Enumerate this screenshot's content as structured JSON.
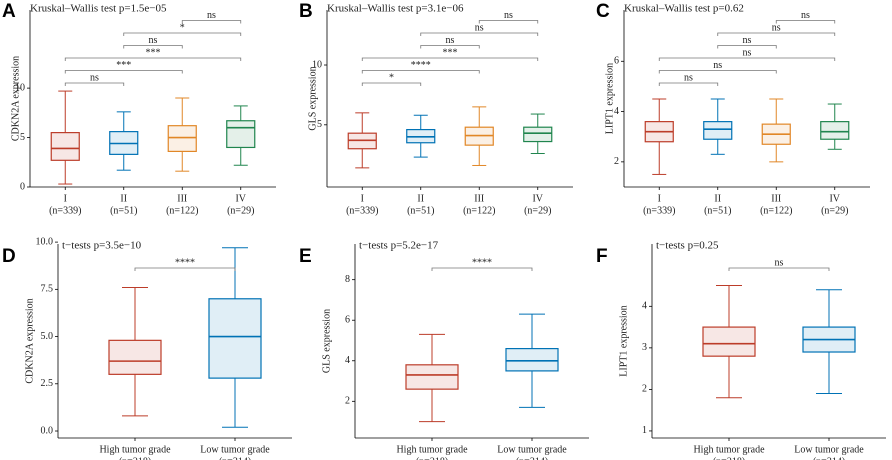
{
  "chart_data": [
    {
      "type": "box",
      "panel_label": "A",
      "title": "Kruskal–Wallis test p=1.5e−05",
      "y_label": "CDKN2A expression",
      "categories": [
        "I",
        "II",
        "III",
        "IV"
      ],
      "group_sizes": [
        "(n=339)",
        "(n=51)",
        "(n=122)",
        "(n=29)"
      ],
      "colors": [
        "#bc3c29",
        "#0072b5",
        "#e18727",
        "#20854e"
      ],
      "boxes": [
        {
          "min": 0.3,
          "q1": 2.7,
          "median": 3.9,
          "q3": 5.5,
          "max": 9.7
        },
        {
          "min": 1.7,
          "q1": 3.3,
          "median": 4.4,
          "q3": 5.6,
          "max": 7.6
        },
        {
          "min": 1.6,
          "q1": 3.6,
          "median": 5.0,
          "q3": 6.2,
          "max": 9.0
        },
        {
          "min": 2.2,
          "q1": 4.0,
          "median": 6.0,
          "q3": 6.7,
          "max": 8.2
        }
      ],
      "comparisons": [
        {
          "groups": [
            0,
            1
          ],
          "label": "ns"
        },
        {
          "groups": [
            0,
            2
          ],
          "label": "***"
        },
        {
          "groups": [
            0,
            3
          ],
          "label": "***"
        },
        {
          "groups": [
            1,
            2
          ],
          "label": "ns"
        },
        {
          "groups": [
            1,
            3
          ],
          "label": "*"
        },
        {
          "groups": [
            2,
            3
          ],
          "label": "ns"
        }
      ],
      "ylim": [
        0,
        17.9
      ],
      "yticks": [
        0,
        5,
        10
      ]
    },
    {
      "type": "box",
      "panel_label": "B",
      "title": "Kruskal–Wallis test p=3.1e−06",
      "y_label": "GLS expression",
      "categories": [
        "I",
        "II",
        "III",
        "IV"
      ],
      "group_sizes": [
        "(n=339)",
        "(n=51)",
        "(n=122)",
        "(n=29)"
      ],
      "colors": [
        "#bc3c29",
        "#0072b5",
        "#e18727",
        "#20854e"
      ],
      "boxes": [
        {
          "min": 1.4,
          "q1": 3.0,
          "median": 3.7,
          "q3": 4.3,
          "max": 6.0
        },
        {
          "min": 2.3,
          "q1": 3.5,
          "median": 4.0,
          "q3": 4.6,
          "max": 5.8
        },
        {
          "min": 1.6,
          "q1": 3.3,
          "median": 4.1,
          "q3": 4.8,
          "max": 6.5
        },
        {
          "min": 2.6,
          "q1": 3.6,
          "median": 4.3,
          "q3": 4.8,
          "max": 5.9
        }
      ],
      "comparisons": [
        {
          "groups": [
            0,
            1
          ],
          "label": "*"
        },
        {
          "groups": [
            0,
            2
          ],
          "label": "****"
        },
        {
          "groups": [
            0,
            3
          ],
          "label": "***"
        },
        {
          "groups": [
            1,
            2
          ],
          "label": "ns"
        },
        {
          "groups": [
            1,
            3
          ],
          "label": "ns"
        },
        {
          "groups": [
            2,
            3
          ],
          "label": "ns"
        }
      ],
      "ylim": [
        -0.2,
        14.6
      ],
      "yticks": [
        5,
        10
      ]
    },
    {
      "type": "box",
      "panel_label": "C",
      "title": "Kruskal–Wallis test p=0.62",
      "y_label": "LIPT1 expression",
      "categories": [
        "I",
        "II",
        "III",
        "IV"
      ],
      "group_sizes": [
        "(n=339)",
        "(n=51)",
        "(n=122)",
        "(n=29)"
      ],
      "colors": [
        "#bc3c29",
        "#0072b5",
        "#e18727",
        "#20854e"
      ],
      "boxes": [
        {
          "min": 1.5,
          "q1": 2.8,
          "median": 3.2,
          "q3": 3.6,
          "max": 4.5
        },
        {
          "min": 2.3,
          "q1": 2.9,
          "median": 3.3,
          "q3": 3.6,
          "max": 4.5
        },
        {
          "min": 2.0,
          "q1": 2.7,
          "median": 3.1,
          "q3": 3.5,
          "max": 4.5
        },
        {
          "min": 2.5,
          "q1": 2.9,
          "median": 3.2,
          "q3": 3.6,
          "max": 4.3
        }
      ],
      "comparisons": [
        {
          "groups": [
            0,
            1
          ],
          "label": "ns"
        },
        {
          "groups": [
            0,
            2
          ],
          "label": "ns"
        },
        {
          "groups": [
            0,
            3
          ],
          "label": "ns"
        },
        {
          "groups": [
            1,
            2
          ],
          "label": "ns"
        },
        {
          "groups": [
            1,
            3
          ],
          "label": "ns"
        },
        {
          "groups": [
            2,
            3
          ],
          "label": "ns"
        }
      ],
      "ylim": [
        1,
        8.04
      ],
      "yticks": [
        2,
        4,
        6
      ]
    },
    {
      "type": "box",
      "panel_label": "D",
      "title": "t−tests p=3.5e−10",
      "y_label": "CDKN2A expression",
      "categories": [
        "High tumor grade",
        "Low tumor grade"
      ],
      "group_sizes": [
        "(n=218)",
        "(n=314)"
      ],
      "colors": [
        "#bc3c29",
        "#0072b5"
      ],
      "boxes": [
        {
          "min": 0.8,
          "q1": 3.0,
          "median": 3.7,
          "q3": 4.8,
          "max": 7.6
        },
        {
          "min": 0.2,
          "q1": 2.8,
          "median": 5.0,
          "q3": 7.0,
          "max": 9.7
        }
      ],
      "comparisons": [
        {
          "groups": [
            0,
            1
          ],
          "label": "****"
        }
      ],
      "ylim": [
        -0.37,
        9.9
      ],
      "yticks": [
        {
          "value": 0,
          "label": "0.0"
        },
        2.5,
        {
          "value": 5,
          "label": "5.0"
        },
        7.5,
        {
          "value": 10,
          "label": "10.0"
        }
      ]
    },
    {
      "type": "box",
      "panel_label": "E",
      "title": "t−tests p=5.2e−17",
      "y_label": "GLS expression",
      "categories": [
        "High tumor grade",
        "Low tumor grade"
      ],
      "group_sizes": [
        "(n=218)",
        "(n=314)"
      ],
      "colors": [
        "#bc3c29",
        "#0072b5"
      ],
      "boxes": [
        {
          "min": 1.0,
          "q1": 2.6,
          "median": 3.3,
          "q3": 3.8,
          "max": 5.3
        },
        {
          "min": 1.7,
          "q1": 3.5,
          "median": 4.0,
          "q3": 4.6,
          "max": 6.3
        }
      ],
      "comparisons": [
        {
          "groups": [
            0,
            1
          ],
          "label": "****"
        }
      ],
      "ylim": [
        0.19,
        9.76
      ],
      "yticks": [
        2,
        4,
        6,
        8
      ]
    },
    {
      "type": "box",
      "panel_label": "F",
      "title": "t−tests p=0.25",
      "y_label": "LIPT1 expression",
      "categories": [
        "High tumor grade",
        "Low tumor grade"
      ],
      "group_sizes": [
        "(n=218)",
        "(n=314)"
      ],
      "colors": [
        "#bc3c29",
        "#0072b5"
      ],
      "boxes": [
        {
          "min": 1.8,
          "q1": 2.8,
          "median": 3.1,
          "q3": 3.5,
          "max": 4.5
        },
        {
          "min": 1.9,
          "q1": 2.9,
          "median": 3.2,
          "q3": 3.5,
          "max": 4.4
        }
      ],
      "comparisons": [
        {
          "groups": [
            0,
            1
          ],
          "label": "ns"
        }
      ],
      "ylim": [
        0.83,
        5.5
      ],
      "yticks": [
        1,
        2,
        3,
        4
      ]
    }
  ]
}
